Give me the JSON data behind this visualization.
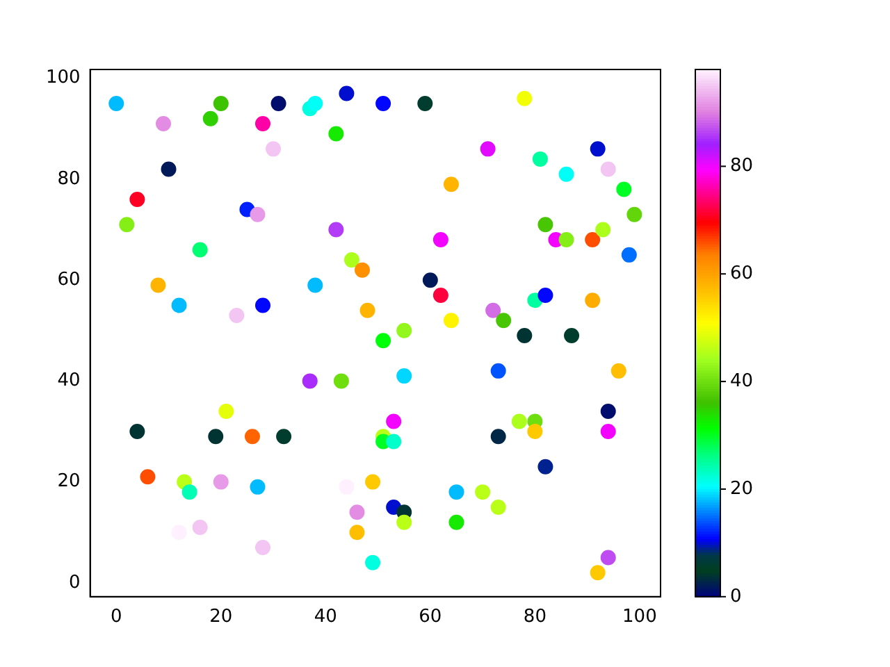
{
  "chart_data": {
    "type": "scatter",
    "marker": "circle",
    "grid": false,
    "legend": false,
    "xlim": [
      -5,
      104
    ],
    "ylim": [
      -2.75,
      101.75
    ],
    "xticks": [
      0,
      20,
      40,
      60,
      80,
      100
    ],
    "yticks": [
      0,
      20,
      40,
      60,
      80,
      100
    ],
    "clim": [
      0,
      98
    ],
    "cticks": [
      0,
      20,
      40,
      60,
      80
    ],
    "x": [
      0,
      9,
      10,
      4,
      2,
      8,
      12,
      16,
      18,
      20,
      25,
      27,
      23,
      28,
      28,
      30,
      31,
      37,
      38,
      38,
      42,
      44,
      42,
      45,
      47,
      48,
      51,
      59,
      60,
      62,
      62,
      64,
      64,
      71,
      72,
      74,
      78,
      78,
      81,
      80,
      82,
      82,
      84,
      86,
      86,
      87,
      91,
      91,
      92,
      93,
      94,
      97,
      98,
      99,
      51,
      55,
      55,
      43,
      37,
      21,
      4,
      19,
      26,
      32,
      6,
      13,
      14,
      20,
      27,
      12,
      16,
      28,
      44,
      46,
      46,
      49,
      49,
      51,
      51,
      53,
      53,
      53,
      55,
      55,
      65,
      65,
      70,
      73,
      73,
      73,
      77,
      80,
      80,
      82,
      94,
      94,
      94,
      92,
      96
    ],
    "values": [
      95,
      91,
      82,
      76,
      71,
      59,
      55,
      66,
      92,
      95,
      74,
      73,
      53,
      55,
      91,
      86,
      95,
      94,
      95,
      59,
      89,
      97,
      70,
      64,
      62,
      54,
      95,
      95,
      60,
      57,
      68,
      79,
      52,
      86,
      54,
      52,
      96,
      49,
      84,
      56,
      71,
      57,
      68,
      68,
      81,
      49,
      68,
      56,
      86,
      70,
      82,
      78,
      65,
      73,
      48,
      50,
      41,
      40,
      40,
      34,
      30,
      29,
      29,
      29,
      21,
      20,
      18,
      20,
      19,
      10,
      11,
      7,
      19,
      14,
      10,
      20,
      4,
      29,
      28,
      28,
      32,
      15,
      14,
      12,
      18,
      12,
      18,
      29,
      15,
      42,
      32,
      32,
      30,
      23,
      34,
      30,
      5,
      2,
      42
    ],
    "cvalues": [
      18,
      91,
      2,
      71,
      42,
      58,
      18,
      27,
      35,
      36,
      12,
      92,
      95,
      11,
      76,
      95,
      1,
      22,
      21,
      18,
      33,
      10,
      86,
      45,
      62,
      58,
      11,
      6,
      2,
      72,
      80,
      58,
      52,
      81,
      89,
      37,
      50,
      4,
      25,
      25,
      37,
      11,
      80,
      42,
      21,
      6,
      66,
      59,
      10,
      45,
      95,
      30,
      15,
      39,
      31,
      43,
      19,
      40,
      85,
      49,
      4,
      4,
      65,
      6,
      66,
      46,
      24,
      92,
      18,
      98,
      95,
      95,
      98,
      91,
      57,
      56,
      22,
      46,
      30,
      23,
      80,
      10,
      4,
      46,
      18,
      33,
      46,
      3,
      46,
      14,
      45,
      40,
      56,
      9,
      1,
      80,
      87,
      56,
      57
    ]
  }
}
